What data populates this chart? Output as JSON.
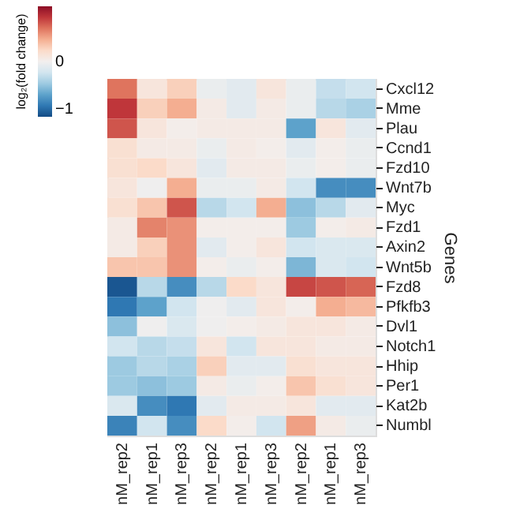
{
  "chart_data": {
    "type": "heatmap",
    "ylabel": "Genes",
    "clabel": "log₂(fold change)",
    "categories": [
      "nM_rep2",
      "nM_rep1",
      "nM_rep3",
      "nM_rep2",
      "nM_rep1",
      "nM_rep3",
      "nM_rep2",
      "nM_rep1",
      "nM_rep3"
    ],
    "y_categories": [
      "Cxcl12",
      "Mme",
      "Plau",
      "Ccnd1",
      "Fzd10",
      "Wnt7b",
      "Myc",
      "Fzd1",
      "Axin2",
      "Wnt5b",
      "Fzd8",
      "Pfkfb3",
      "Dvl1",
      "Notch1",
      "Hhip",
      "Per1",
      "Kat2b",
      "Numbl"
    ],
    "cells": [
      [
        0.6,
        0.1,
        0.25,
        -0.05,
        -0.1,
        0.1,
        -0.05,
        -0.25,
        -0.2
      ],
      [
        0.8,
        0.25,
        0.4,
        0.05,
        -0.1,
        0.05,
        -0.05,
        -0.3,
        -0.35
      ],
      [
        0.7,
        0.1,
        0.02,
        0.05,
        0.05,
        0.05,
        -0.6,
        0.1,
        -0.1
      ],
      [
        0.15,
        0.05,
        0.05,
        -0.05,
        0.05,
        0.02,
        -0.1,
        0.02,
        -0.05
      ],
      [
        0.15,
        0.2,
        0.1,
        -0.1,
        0.05,
        0.05,
        -0.05,
        0.02,
        -0.05
      ],
      [
        0.1,
        -0.02,
        0.4,
        -0.05,
        -0.05,
        0.05,
        -0.2,
        -0.7,
        -0.7
      ],
      [
        0.15,
        0.3,
        0.7,
        -0.3,
        -0.2,
        0.4,
        -0.45,
        -0.3,
        -0.1
      ],
      [
        0.05,
        0.55,
        0.5,
        0.02,
        0.02,
        0.02,
        -0.4,
        0.02,
        0.05
      ],
      [
        0.05,
        0.25,
        0.5,
        -0.1,
        0.02,
        0.1,
        -0.2,
        -0.15,
        -0.15
      ],
      [
        0.3,
        0.3,
        0.5,
        0.02,
        -0.05,
        0.02,
        -0.5,
        -0.15,
        -0.2
      ],
      [
        -0.95,
        -0.3,
        -0.7,
        -0.3,
        0.2,
        0.1,
        0.75,
        0.7,
        0.65
      ],
      [
        -0.8,
        -0.6,
        -0.2,
        -0.02,
        -0.1,
        0.1,
        0.02,
        0.4,
        0.35
      ],
      [
        -0.45,
        -0.02,
        -0.15,
        -0.02,
        0.02,
        0.05,
        0.1,
        0.1,
        0.05
      ],
      [
        -0.2,
        -0.3,
        -0.25,
        0.1,
        -0.2,
        0.1,
        0.1,
        0.05,
        0.05
      ],
      [
        -0.4,
        -0.3,
        -0.35,
        0.25,
        -0.1,
        -0.1,
        0.15,
        0.1,
        0.1
      ],
      [
        -0.4,
        -0.45,
        -0.4,
        0.05,
        -0.05,
        0.02,
        0.3,
        0.15,
        0.1
      ],
      [
        -0.15,
        -0.7,
        -0.8,
        -0.1,
        0.05,
        0.05,
        0.1,
        -0.1,
        -0.1
      ],
      [
        -0.75,
        -0.2,
        -0.7,
        0.2,
        0.02,
        -0.2,
        0.45,
        0.05,
        -0.05
      ]
    ],
    "clim": [
      -1,
      1
    ],
    "cticks": [
      0,
      -1
    ]
  }
}
